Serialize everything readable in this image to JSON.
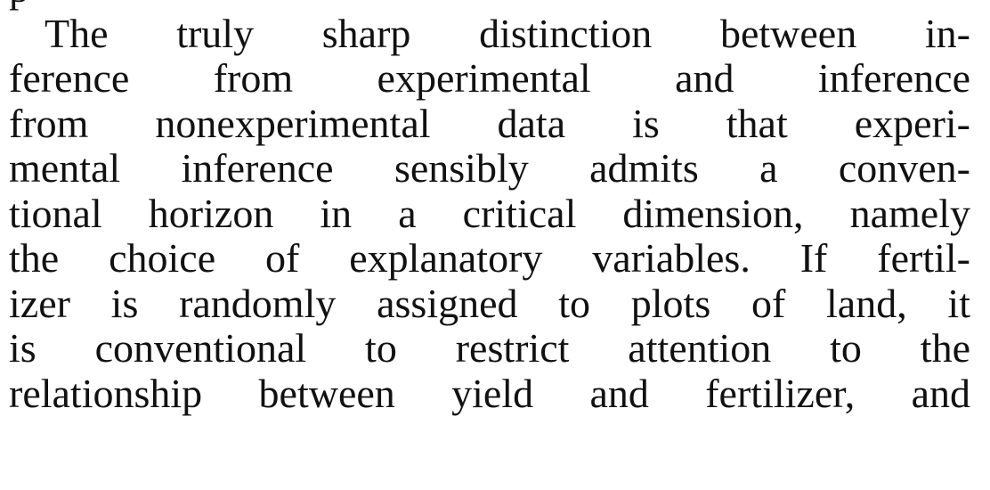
{
  "paragraph": {
    "lines": [
      "p",
      "The truly sharp distinction between in-",
      "ference from experimental and inference",
      "from nonexperimental data is that experi-",
      "mental inference sensibly admits a conven-",
      "tional horizon in a critical dimension, namely",
      "the choice of explanatory variables. If fertil-",
      "izer is randomly assigned to plots of land, it",
      "is conventional to restrict attention to the",
      "relationship between yield and fertilizer, and"
    ]
  }
}
